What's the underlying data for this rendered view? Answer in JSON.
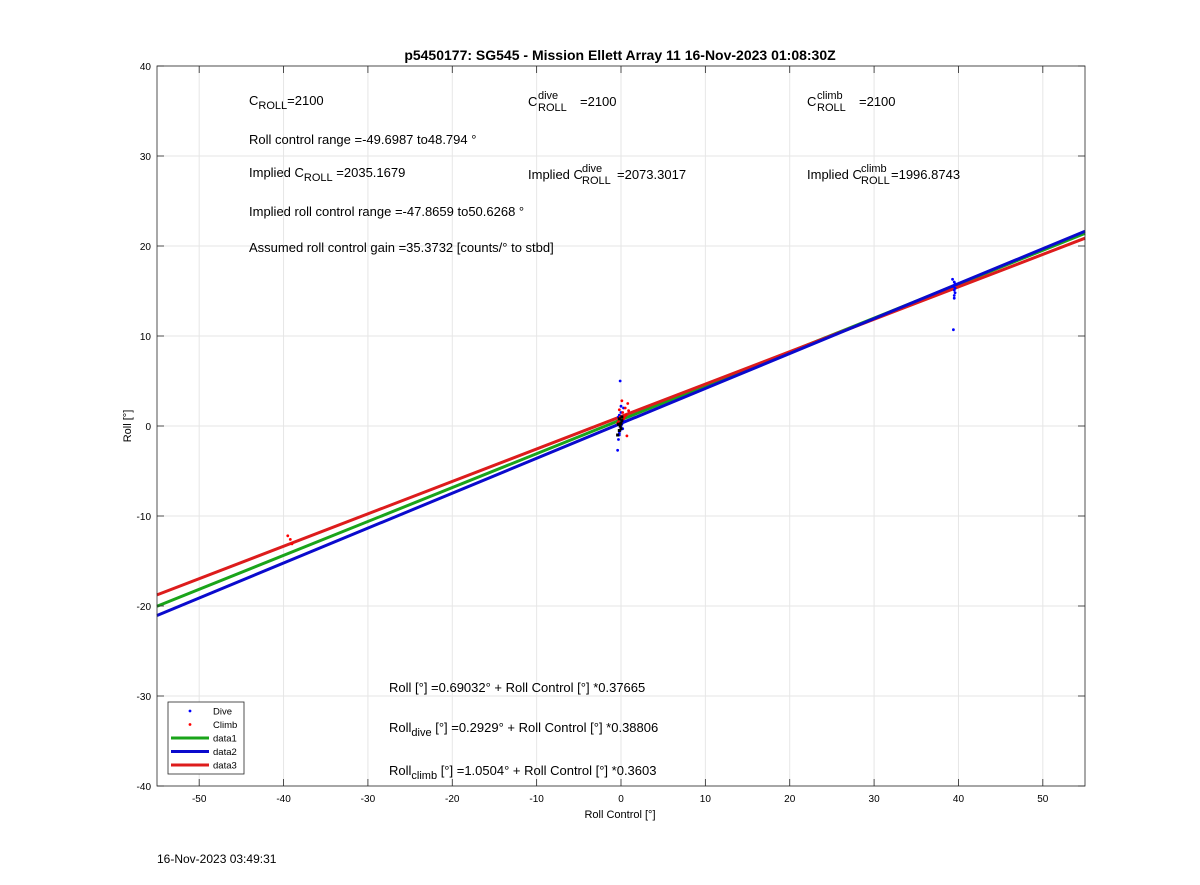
{
  "chart_data": {
    "type": "scatter",
    "title": "p5450177: SG545 - Mission Ellett Array 11 16-Nov-2023 01:08:30Z",
    "xlabel": "Roll Control [°]",
    "ylabel": "Roll [°]",
    "xlim": [
      -55,
      55
    ],
    "ylim": [
      -40,
      40
    ],
    "xticks": [
      -50,
      -40,
      -30,
      -20,
      -10,
      0,
      10,
      20,
      30,
      40,
      50
    ],
    "yticks": [
      -40,
      -30,
      -20,
      -10,
      0,
      10,
      20,
      30,
      40
    ],
    "grid": true,
    "legend_position": "bottom-left",
    "scatter_series": [
      {
        "name": "Dive",
        "color": "#0000ff",
        "x": [
          -0.4,
          -0.3,
          -0.2,
          -0.1,
          0,
          0.1,
          0.2,
          -0.3,
          0,
          0.3,
          -0.2,
          0.1,
          0.4,
          -0.1,
          0,
          -0.2,
          0.2,
          39.4,
          39.5,
          39.6,
          39.5,
          39.4,
          39.6,
          39.5,
          39.3,
          39.5,
          39.6
        ],
        "y": [
          -2.7,
          -1.5,
          -1.0,
          -0.5,
          0,
          0.3,
          0.6,
          1.0,
          1.5,
          2.0,
          -0.8,
          0.2,
          0.5,
          5.0,
          2.2,
          1.2,
          -0.3,
          10.7,
          14.2,
          14.8,
          15.1,
          15.5,
          15.8,
          16.0,
          16.3,
          14.5,
          15.3
        ]
      },
      {
        "name": "Climb",
        "color": "#ff0000",
        "x": [
          -0.3,
          -0.1,
          0.2,
          0.5,
          0.8,
          0.3,
          -0.2,
          0.6,
          0.9,
          0.1,
          -0.4,
          0.7,
          0.4,
          -39.5,
          -39.2,
          -39.0
        ],
        "y": [
          0.5,
          1.0,
          1.5,
          2.0,
          2.5,
          0.8,
          1.8,
          1.2,
          1.7,
          2.8,
          0.3,
          -1.1,
          1.0,
          -12.2,
          -12.6,
          -13.1
        ]
      }
    ],
    "black_points": {
      "x": [
        -0.4,
        -0.2,
        -0.1,
        0,
        0.1,
        -0.3,
        0,
        -0.2,
        0.1
      ],
      "y": [
        -1.0,
        -0.5,
        0,
        0.3,
        0.6,
        0.2,
        -0.3,
        0.8,
        1.0
      ]
    },
    "fit_lines": [
      {
        "name": "data1",
        "color": "#1aa41a",
        "intercept": 0.69032,
        "slope": 0.37665
      },
      {
        "name": "data2",
        "color": "#0a0acd",
        "intercept": 0.2929,
        "slope": 0.38806
      },
      {
        "name": "data3",
        "color": "#dd1c1c",
        "intercept": 1.0504,
        "slope": 0.3603
      }
    ],
    "legend": [
      {
        "label": "Dive",
        "kind": "marker",
        "color": "#0000ff"
      },
      {
        "label": "Climb",
        "kind": "marker",
        "color": "#ff0000"
      },
      {
        "label": "data1",
        "kind": "line",
        "color": "#1aa41a"
      },
      {
        "label": "data2",
        "kind": "line",
        "color": "#0a0acd"
      },
      {
        "label": "data3",
        "kind": "line",
        "color": "#dd1c1c"
      }
    ],
    "annotations": {
      "c_roll": {
        "base": "C",
        "sub": "ROLL",
        "suffix": "=2100"
      },
      "c_roll_dive": {
        "base": "C",
        "sup": "dive",
        "sub": "ROLL",
        "suffix": " =2100"
      },
      "c_roll_climb": {
        "base": "C",
        "sup": "climb",
        "sub": "ROLL",
        "suffix": " =2100"
      },
      "roll_control_range": "Roll control range =-49.6987 to48.794 °",
      "implied_c_roll": {
        "prefix": "Implied C",
        "sub": "ROLL",
        "suffix": " =2035.1679"
      },
      "implied_c_roll_dive": {
        "prefix": "Implied C",
        "sup": "dive",
        "sub": "ROLL",
        "suffix": " =2073.3017"
      },
      "implied_c_roll_climb": {
        "prefix": "Implied C",
        "sup": "climb",
        "sub": "ROLL",
        "suffix": " =1996.8743"
      },
      "implied_range": "Implied roll control range =-47.8659 to50.6268 °",
      "assumed_gain": "Assumed roll control gain =35.3732 [counts/° to stbd]",
      "eq_all": {
        "prefix": "Roll [°] =0.69032° + Roll Control [°] *0.37665"
      },
      "eq_dive": {
        "prefix": "Roll",
        "sub": "dive",
        "suffix": " [°] =0.2929° + Roll Control [°] *0.38806"
      },
      "eq_climb": {
        "prefix": "Roll",
        "sub": "climb",
        "suffix": " [°] =1.0504° + Roll Control [°] *0.3603"
      }
    }
  },
  "timestamp": "16-Nov-2023 03:49:31"
}
